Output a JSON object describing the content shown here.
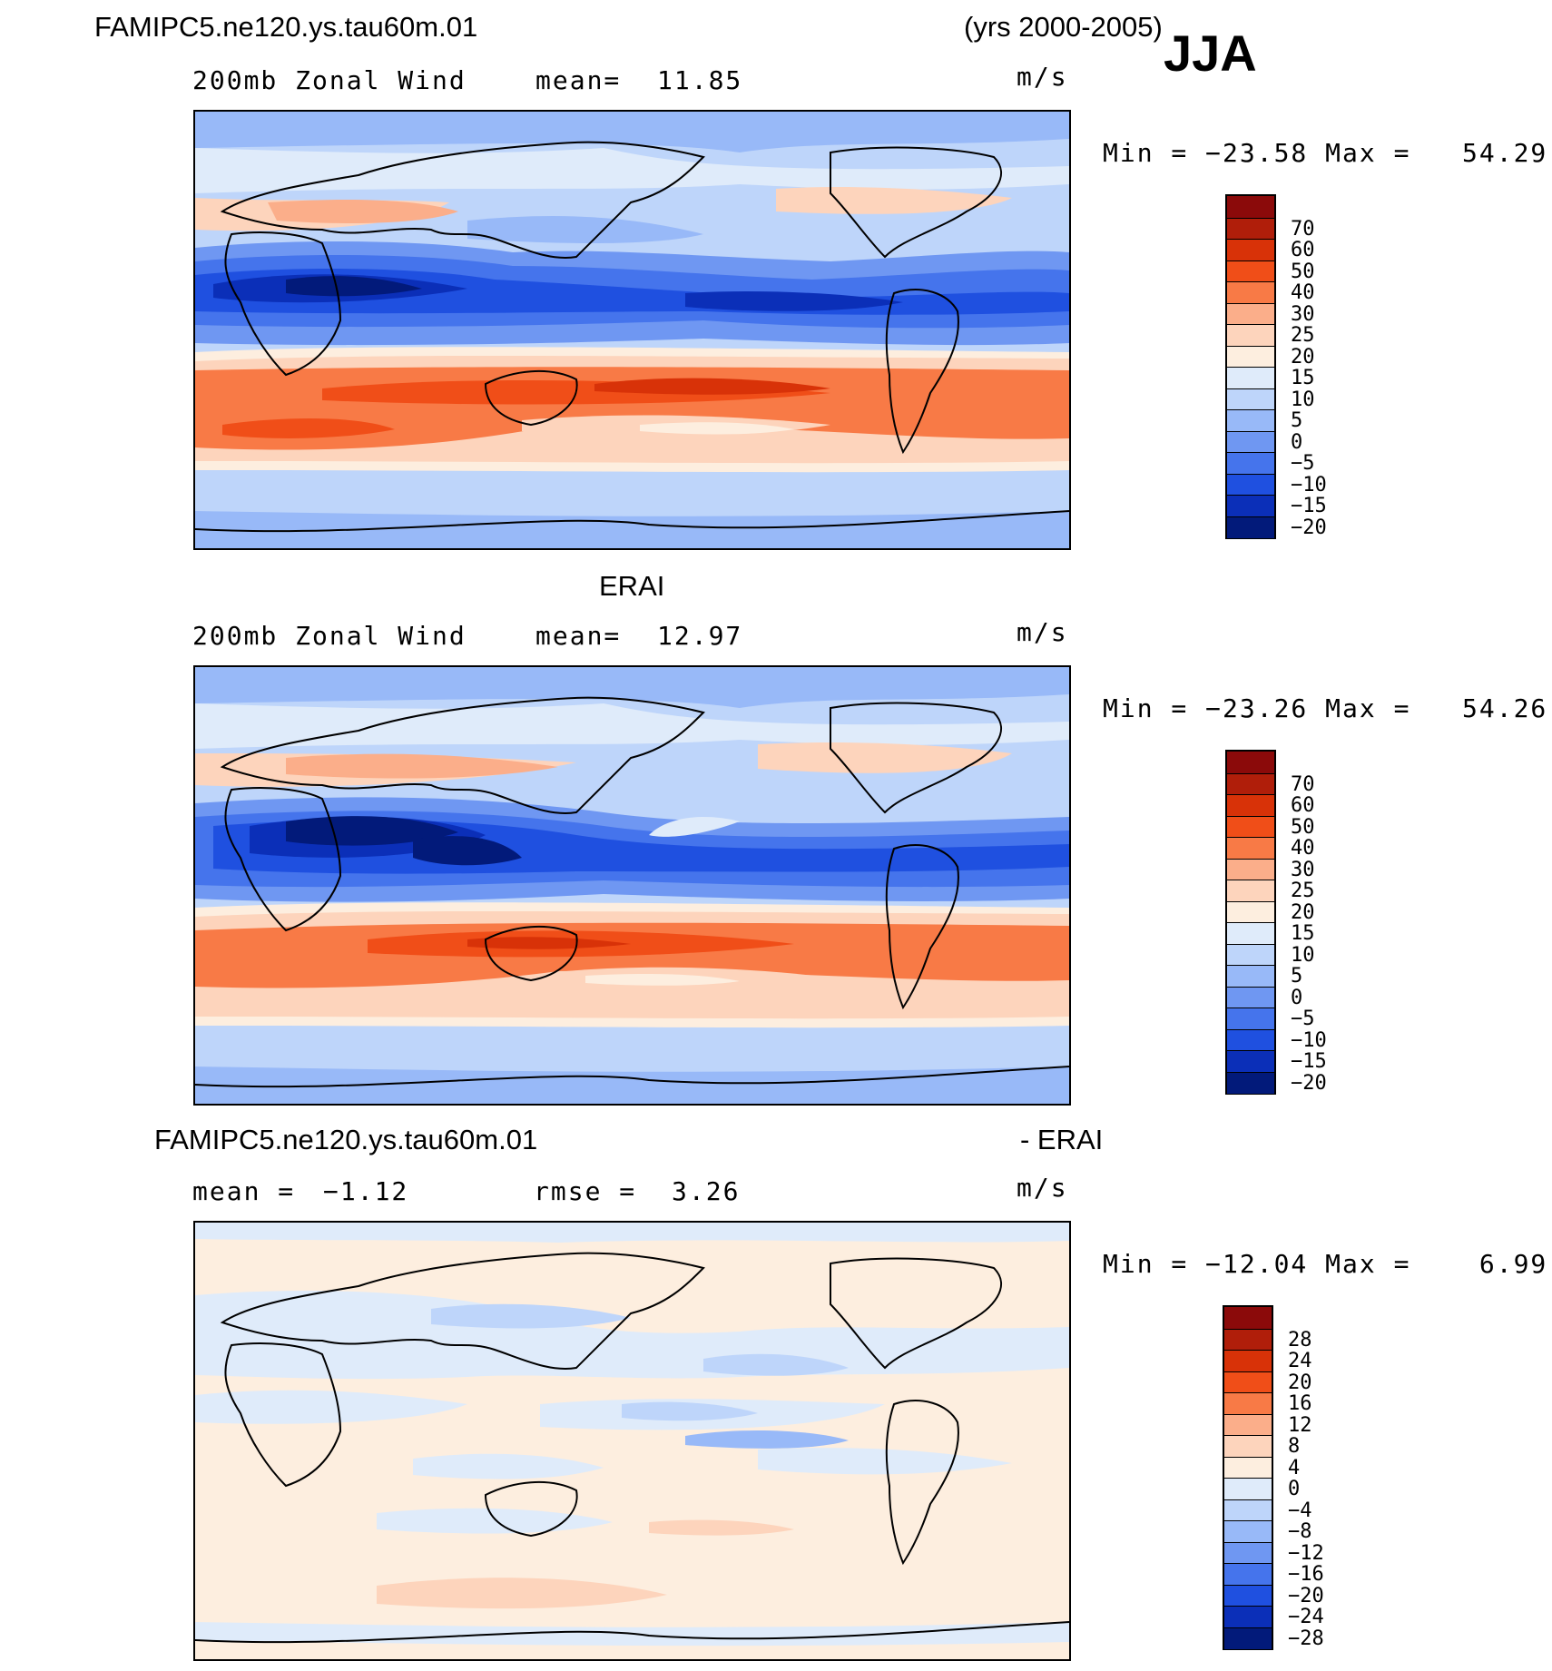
{
  "header": {
    "case_name": "FAMIPC5.ne120.ys.tau60m.01",
    "years": "(yrs 2000-2005)",
    "season": "JJA"
  },
  "panels": [
    {
      "id": "model",
      "heading": "",
      "left_label": "200mb Zonal Wind",
      "stat_label": "mean=",
      "stat_value": "11.85",
      "units": "m/s",
      "minmax": "Min = −23.58 Max =   54.29",
      "colorbar_ticks": [
        "70",
        "60",
        "50",
        "40",
        "30",
        "25",
        "20",
        "15",
        "10",
        "5",
        "0",
        "−5",
        "−10",
        "−15",
        "−20"
      ]
    },
    {
      "id": "obs",
      "heading": "ERAI",
      "left_label": "200mb Zonal Wind",
      "stat_label": "mean=",
      "stat_value": "12.97",
      "units": "m/s",
      "minmax": "Min = −23.26 Max =   54.26",
      "colorbar_ticks": [
        "70",
        "60",
        "50",
        "40",
        "30",
        "25",
        "20",
        "15",
        "10",
        "5",
        "0",
        "−5",
        "−10",
        "−15",
        "−20"
      ]
    },
    {
      "id": "diff",
      "heading_left": "FAMIPC5.ne120.ys.tau60m.01",
      "heading_right": "- ERAI",
      "left_label": "mean =",
      "left_value": "−1.12",
      "stat_label": "rmse =",
      "stat_value": "3.26",
      "units": "m/s",
      "minmax": "Min = −12.04 Max =    6.99",
      "colorbar_ticks": [
        "28",
        "24",
        "20",
        "16",
        "12",
        "8",
        "4",
        "0",
        "−4",
        "−8",
        "−12",
        "−16",
        "−20",
        "−24",
        "−28"
      ]
    }
  ],
  "chart_data": [
    {
      "type": "heatmap",
      "title": "200mb Zonal Wind",
      "units": "m/s",
      "mean": 11.85,
      "min": -23.58,
      "max": 54.29,
      "colorbar_levels": [
        70,
        60,
        50,
        40,
        30,
        25,
        20,
        15,
        10,
        5,
        0,
        -5,
        -10,
        -15,
        -20
      ],
      "colors": [
        "#8b0a0a",
        "#b01e0a",
        "#d83208",
        "#f04e18",
        "#f87a46",
        "#fbae8a",
        "#fdd4bc",
        "#fdeedf",
        "#dfebfa",
        "#bed5fa",
        "#98b9f8",
        "#6f97f2",
        "#4574ec",
        "#1f50e0",
        "#0b2fb8",
        "#021a7a"
      ]
    },
    {
      "type": "heatmap",
      "title": "200mb Zonal Wind",
      "units": "m/s",
      "mean": 12.97,
      "min": -23.26,
      "max": 54.26,
      "colorbar_levels": [
        70,
        60,
        50,
        40,
        30,
        25,
        20,
        15,
        10,
        5,
        0,
        -5,
        -10,
        -15,
        -20
      ],
      "colors": [
        "#8b0a0a",
        "#b01e0a",
        "#d83208",
        "#f04e18",
        "#f87a46",
        "#fbae8a",
        "#fdd4bc",
        "#fdeedf",
        "#dfebfa",
        "#bed5fa",
        "#98b9f8",
        "#6f97f2",
        "#4574ec",
        "#1f50e0",
        "#0b2fb8",
        "#021a7a"
      ]
    },
    {
      "type": "heatmap",
      "title": "",
      "units": "m/s",
      "mean": -1.12,
      "rmse": 3.26,
      "min": -12.04,
      "max": 6.99,
      "colorbar_levels": [
        28,
        24,
        20,
        16,
        12,
        8,
        4,
        0,
        -4,
        -8,
        -12,
        -16,
        -20,
        -24,
        -28
      ],
      "colors": [
        "#8b0a0a",
        "#b01e0a",
        "#d83208",
        "#f04e18",
        "#f87a46",
        "#fbae8a",
        "#fdd4bc",
        "#fdeedf",
        "#dfebfa",
        "#bed5fa",
        "#98b9f8",
        "#6f97f2",
        "#4574ec",
        "#1f50e0",
        "#0b2fb8",
        "#021a7a"
      ]
    }
  ]
}
